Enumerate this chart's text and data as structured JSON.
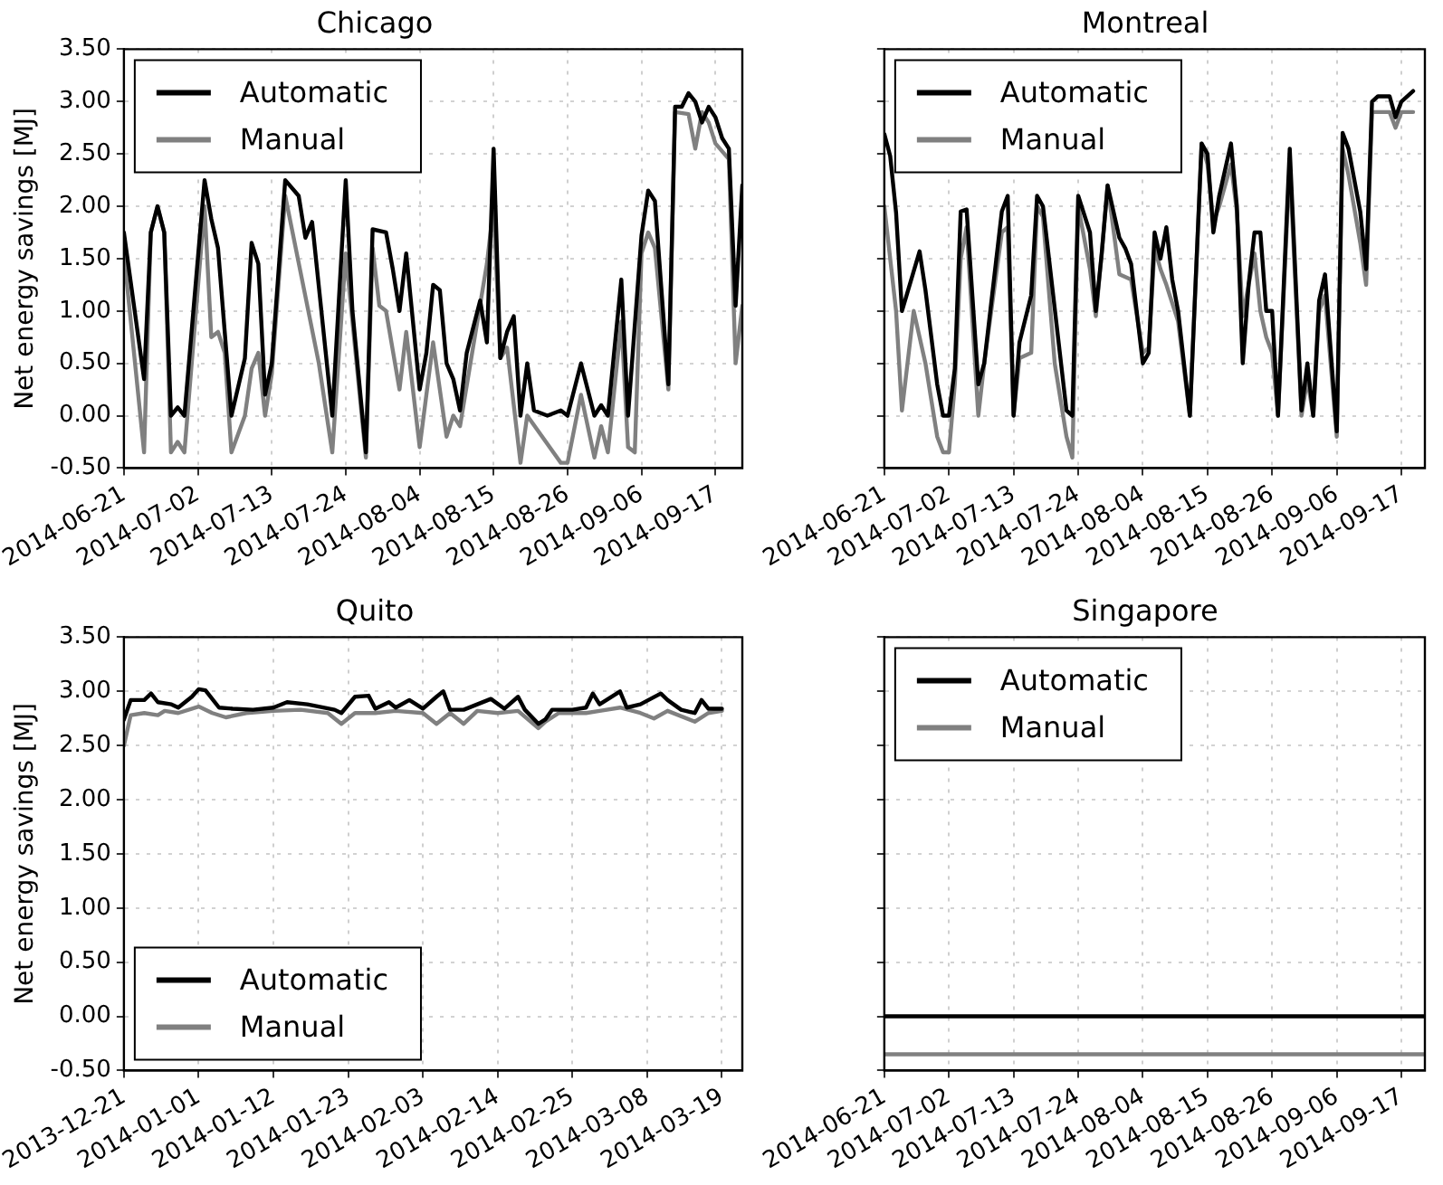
{
  "chart_data": [
    {
      "type": "line",
      "title": "Chicago",
      "ylabel": "Net energy savings [MJ]",
      "legend": "top left",
      "grid": true,
      "line_style": "solid",
      "xlim": [
        "2014-06-21",
        "2014-09-21"
      ],
      "xticks": [
        "2014-06-21",
        "2014-07-02",
        "2014-07-13",
        "2014-07-24",
        "2014-08-04",
        "2014-08-15",
        "2014-08-26",
        "2014-09-06",
        "2014-09-17"
      ],
      "ylim": [
        -0.5,
        3.5
      ],
      "yticks": [
        {
          "value": -0.5,
          "label": "-0.50"
        },
        {
          "value": 0,
          "label": "0.00"
        },
        {
          "value": 0.5,
          "label": "0.50"
        },
        {
          "value": 1,
          "label": "1.00"
        },
        {
          "value": 1.5,
          "label": "1.50"
        },
        {
          "value": 2,
          "label": "2.00"
        },
        {
          "value": 2.5,
          "label": "2.50"
        },
        {
          "value": 3,
          "label": "3.00"
        },
        {
          "value": 3.5,
          "label": "3.50"
        }
      ],
      "series": [
        {
          "name": "Automatic",
          "color": "#000000",
          "x": [
            "2014-06-21",
            "2014-06-24",
            "2014-06-25",
            "2014-06-26",
            "2014-06-27",
            "2014-06-28",
            "2014-06-29",
            "2014-06-30",
            "2014-07-03",
            "2014-07-04",
            "2014-07-05",
            "2014-07-07",
            "2014-07-09",
            "2014-07-10",
            "2014-07-11",
            "2014-07-12",
            "2014-07-13",
            "2014-07-15",
            "2014-07-17",
            "2014-07-18",
            "2014-07-19",
            "2014-07-22",
            "2014-07-24",
            "2014-07-25",
            "2014-07-27",
            "2014-07-28",
            "2014-07-30",
            "2014-07-31",
            "2014-08-01",
            "2014-08-02",
            "2014-08-04",
            "2014-08-05",
            "2014-08-06",
            "2014-08-07",
            "2014-08-08",
            "2014-08-09",
            "2014-08-10",
            "2014-08-11",
            "2014-08-13",
            "2014-08-14",
            "2014-08-15",
            "2014-08-16",
            "2014-08-17",
            "2014-08-18",
            "2014-08-19",
            "2014-08-20",
            "2014-08-21",
            "2014-08-23",
            "2014-08-25",
            "2014-08-26",
            "2014-08-28",
            "2014-08-30",
            "2014-08-31",
            "2014-09-01",
            "2014-09-03",
            "2014-09-04",
            "2014-09-06",
            "2014-09-07",
            "2014-09-08",
            "2014-09-10",
            "2014-09-11",
            "2014-09-12",
            "2014-09-13",
            "2014-09-14",
            "2014-09-15",
            "2014-09-16",
            "2014-09-17",
            "2014-09-18",
            "2014-09-19",
            "2014-09-20",
            "2014-09-21"
          ],
          "values": [
            1.75,
            0.35,
            1.75,
            2.0,
            1.75,
            0.0,
            0.08,
            0.0,
            2.25,
            1.88,
            1.6,
            0.0,
            0.55,
            1.65,
            1.45,
            0.2,
            0.5,
            2.25,
            2.1,
            1.7,
            1.85,
            0.0,
            2.25,
            1.0,
            -0.35,
            1.78,
            1.75,
            1.4,
            1.0,
            1.55,
            0.25,
            0.6,
            1.25,
            1.2,
            0.5,
            0.35,
            0.05,
            0.6,
            1.1,
            0.7,
            2.55,
            0.55,
            0.8,
            0.95,
            0.0,
            0.5,
            0.05,
            0.0,
            0.05,
            0.0,
            0.5,
            0.0,
            0.1,
            0.0,
            1.3,
            0.0,
            1.72,
            2.15,
            2.05,
            0.3,
            2.95,
            2.95,
            3.08,
            3.0,
            2.8,
            2.95,
            2.85,
            2.65,
            2.55,
            1.05,
            2.2
          ]
        },
        {
          "name": "Manual",
          "color": "#808080",
          "x": [
            "2014-06-21",
            "2014-06-24",
            "2014-06-25",
            "2014-06-26",
            "2014-06-27",
            "2014-06-28",
            "2014-06-29",
            "2014-06-30",
            "2014-07-03",
            "2014-07-04",
            "2014-07-05",
            "2014-07-06",
            "2014-07-07",
            "2014-07-09",
            "2014-07-10",
            "2014-07-11",
            "2014-07-12",
            "2014-07-13",
            "2014-07-15",
            "2014-07-20",
            "2014-07-22",
            "2014-07-24",
            "2014-07-27",
            "2014-07-28",
            "2014-07-29",
            "2014-07-30",
            "2014-08-01",
            "2014-08-02",
            "2014-08-04",
            "2014-08-06",
            "2014-08-08",
            "2014-08-09",
            "2014-08-10",
            "2014-08-14",
            "2014-08-15",
            "2014-08-16",
            "2014-08-17",
            "2014-08-19",
            "2014-08-20",
            "2014-08-25",
            "2014-08-26",
            "2014-08-28",
            "2014-08-30",
            "2014-08-31",
            "2014-09-01",
            "2014-09-03",
            "2014-09-04",
            "2014-09-05",
            "2014-09-06",
            "2014-09-07",
            "2014-09-08",
            "2014-09-10",
            "2014-09-11",
            "2014-09-13",
            "2014-09-14",
            "2014-09-15",
            "2014-09-16",
            "2014-09-17",
            "2014-09-19",
            "2014-09-20",
            "2014-09-21"
          ],
          "values": [
            1.55,
            -0.35,
            1.75,
            2.0,
            1.75,
            -0.35,
            -0.25,
            -0.35,
            2.0,
            0.75,
            0.8,
            0.6,
            -0.35,
            0.0,
            0.45,
            0.6,
            0.0,
            0.4,
            2.1,
            0.5,
            -0.35,
            1.55,
            -0.4,
            1.6,
            1.05,
            1.0,
            0.25,
            0.8,
            -0.3,
            0.7,
            -0.2,
            0.0,
            -0.1,
            1.45,
            2.0,
            0.55,
            0.65,
            -0.45,
            0.0,
            -0.45,
            -0.45,
            0.2,
            -0.4,
            -0.1,
            -0.35,
            0.9,
            -0.3,
            -0.35,
            1.55,
            1.75,
            1.6,
            0.25,
            2.9,
            2.88,
            2.55,
            2.9,
            2.8,
            2.6,
            2.45,
            0.5,
            1.05
          ]
        }
      ]
    },
    {
      "type": "line",
      "title": "Montreal",
      "legend": "top left",
      "grid": true,
      "line_style": "solid",
      "tick_labels": "x",
      "xlim": [
        "2014-06-21",
        "2014-09-21"
      ],
      "xticks": [
        "2014-06-21",
        "2014-07-02",
        "2014-07-13",
        "2014-07-24",
        "2014-08-04",
        "2014-08-15",
        "2014-08-26",
        "2014-09-06",
        "2014-09-17"
      ],
      "ylim": [
        -0.5,
        3.5
      ],
      "yticks": [
        {
          "value": -0.5,
          "label": null
        },
        {
          "value": 0,
          "label": null
        },
        {
          "value": 0.5,
          "label": null
        },
        {
          "value": 1,
          "label": null
        },
        {
          "value": 1.5,
          "label": null
        },
        {
          "value": 2,
          "label": null
        },
        {
          "value": 2.5,
          "label": null
        },
        {
          "value": 3,
          "label": null
        },
        {
          "value": 3.5,
          "label": null
        }
      ],
      "series": [
        {
          "name": "Automatic",
          "color": "#000000",
          "x": [
            "2014-06-21",
            "2014-06-22",
            "2014-06-23",
            "2014-06-24",
            "2014-06-27",
            "2014-06-28",
            "2014-06-30",
            "2014-07-01",
            "2014-07-02",
            "2014-07-03",
            "2014-07-04",
            "2014-07-05",
            "2014-07-07",
            "2014-07-08",
            "2014-07-11",
            "2014-07-12",
            "2014-07-13",
            "2014-07-14",
            "2014-07-16",
            "2014-07-17",
            "2014-07-18",
            "2014-07-22",
            "2014-07-23",
            "2014-07-24",
            "2014-07-26",
            "2014-07-27",
            "2014-07-28",
            "2014-07-29",
            "2014-07-31",
            "2014-08-01",
            "2014-08-02",
            "2014-08-04",
            "2014-08-05",
            "2014-08-06",
            "2014-08-07",
            "2014-08-08",
            "2014-08-09",
            "2014-08-10",
            "2014-08-12",
            "2014-08-14",
            "2014-08-15",
            "2014-08-16",
            "2014-08-17",
            "2014-08-19",
            "2014-08-20",
            "2014-08-21",
            "2014-08-22",
            "2014-08-23",
            "2014-08-24",
            "2014-08-25",
            "2014-08-26",
            "2014-08-27",
            "2014-08-29",
            "2014-08-31",
            "2014-09-01",
            "2014-09-02",
            "2014-09-03",
            "2014-09-04",
            "2014-09-06",
            "2014-09-07",
            "2014-09-08",
            "2014-09-10",
            "2014-09-11",
            "2014-09-12",
            "2014-09-13",
            "2014-09-15",
            "2014-09-16",
            "2014-09-17",
            "2014-09-19"
          ],
          "values": [
            2.69,
            2.48,
            1.94,
            1.0,
            1.57,
            1.2,
            0.3,
            0.0,
            0.0,
            0.45,
            1.95,
            1.97,
            0.3,
            0.5,
            1.95,
            2.1,
            0.0,
            0.7,
            1.15,
            2.1,
            2.0,
            0.05,
            0.0,
            2.1,
            1.75,
            1.0,
            1.55,
            2.2,
            1.7,
            1.6,
            1.45,
            0.5,
            0.6,
            1.75,
            1.5,
            1.8,
            1.3,
            1.0,
            0.0,
            2.6,
            2.5,
            1.75,
            2.1,
            2.6,
            2.0,
            0.5,
            1.25,
            1.75,
            1.75,
            1.0,
            1.0,
            0.0,
            2.55,
            0.05,
            0.5,
            0.0,
            1.1,
            1.35,
            -0.15,
            2.7,
            2.55,
            1.95,
            1.4,
            3.0,
            3.05,
            3.05,
            2.85,
            3.0,
            3.1
          ]
        },
        {
          "name": "Manual",
          "color": "#808080",
          "x": [
            "2014-06-21",
            "2014-06-23",
            "2014-06-24",
            "2014-06-26",
            "2014-06-28",
            "2014-06-30",
            "2014-07-01",
            "2014-07-02",
            "2014-07-03",
            "2014-07-04",
            "2014-07-05",
            "2014-07-07",
            "2014-07-08",
            "2014-07-11",
            "2014-07-12",
            "2014-07-13",
            "2014-07-14",
            "2014-07-16",
            "2014-07-17",
            "2014-07-18",
            "2014-07-20",
            "2014-07-22",
            "2014-07-23",
            "2014-07-24",
            "2014-07-26",
            "2014-07-27",
            "2014-07-28",
            "2014-07-29",
            "2014-07-31",
            "2014-08-02",
            "2014-08-04",
            "2014-08-05",
            "2014-08-06",
            "2014-08-07",
            "2014-08-08",
            "2014-08-10",
            "2014-08-12",
            "2014-08-14",
            "2014-08-15",
            "2014-08-16",
            "2014-08-17",
            "2014-08-19",
            "2014-08-20",
            "2014-08-21",
            "2014-08-23",
            "2014-08-24",
            "2014-08-25",
            "2014-08-26",
            "2014-08-27",
            "2014-08-29",
            "2014-08-31",
            "2014-09-01",
            "2014-09-02",
            "2014-09-03",
            "2014-09-04",
            "2014-09-06",
            "2014-09-07",
            "2014-09-08",
            "2014-09-10",
            "2014-09-11",
            "2014-09-12",
            "2014-09-15",
            "2014-09-16",
            "2014-09-17",
            "2014-09-19"
          ],
          "values": [
            2.0,
            1.0,
            0.05,
            1.0,
            0.5,
            -0.2,
            -0.35,
            -0.35,
            0.3,
            1.5,
            1.8,
            0.0,
            0.5,
            1.75,
            1.8,
            0.0,
            0.55,
            0.6,
            2.0,
            1.9,
            0.5,
            -0.2,
            -0.4,
            2.0,
            1.4,
            0.95,
            1.55,
            2.2,
            1.35,
            1.3,
            0.6,
            0.65,
            1.6,
            1.4,
            1.25,
            0.9,
            0.0,
            2.6,
            2.4,
            1.85,
            2.0,
            2.4,
            1.95,
            0.95,
            1.55,
            1.0,
            0.75,
            0.6,
            0.0,
            2.4,
            0.0,
            0.35,
            0.0,
            1.0,
            1.15,
            -0.2,
            2.55,
            2.3,
            1.65,
            1.25,
            2.9,
            2.9,
            2.75,
            2.9,
            2.9
          ]
        }
      ]
    },
    {
      "type": "line",
      "title": "Quito",
      "ylabel": "Net energy savings [MJ]",
      "legend": "bottom left",
      "grid": true,
      "line_style": "solid",
      "xlim": [
        "2013-12-21",
        "2014-03-22"
      ],
      "xticks": [
        "2013-12-21",
        "2014-01-01",
        "2014-01-12",
        "2014-01-23",
        "2014-02-03",
        "2014-02-14",
        "2014-02-25",
        "2014-03-08",
        "2014-03-19"
      ],
      "ylim": [
        -0.5,
        3.5
      ],
      "yticks": [
        {
          "value": -0.5,
          "label": "-0.50"
        },
        {
          "value": 0,
          "label": "0.00"
        },
        {
          "value": 0.5,
          "label": "0.50"
        },
        {
          "value": 1,
          "label": "1.00"
        },
        {
          "value": 1.5,
          "label": "1.50"
        },
        {
          "value": 2,
          "label": "2.00"
        },
        {
          "value": 2.5,
          "label": "2.50"
        },
        {
          "value": 3,
          "label": "3.00"
        },
        {
          "value": 3.5,
          "label": "3.50"
        }
      ],
      "series": [
        {
          "name": "Automatic",
          "color": "#000000",
          "x": [
            "2013-12-21",
            "2013-12-22",
            "2013-12-24",
            "2013-12-25",
            "2013-12-26",
            "2013-12-28",
            "2013-12-29",
            "2013-12-31",
            "2014-01-01",
            "2014-01-02",
            "2014-01-04",
            "2014-01-06",
            "2014-01-09",
            "2014-01-12",
            "2014-01-14",
            "2014-01-17",
            "2014-01-21",
            "2014-01-22",
            "2014-01-24",
            "2014-01-26",
            "2014-01-27",
            "2014-01-29",
            "2014-01-30",
            "2014-02-01",
            "2014-02-03",
            "2014-02-05",
            "2014-02-06",
            "2014-02-07",
            "2014-02-09",
            "2014-02-11",
            "2014-02-13",
            "2014-02-15",
            "2014-02-17",
            "2014-02-18",
            "2014-02-20",
            "2014-02-21",
            "2014-02-22",
            "2014-02-25",
            "2014-02-27",
            "2014-02-28",
            "2014-03-01",
            "2014-03-04",
            "2014-03-05",
            "2014-03-07",
            "2014-03-10",
            "2014-03-11",
            "2014-03-13",
            "2014-03-15",
            "2014-03-16",
            "2014-03-17",
            "2014-03-19"
          ],
          "values": [
            2.74,
            2.92,
            2.92,
            2.98,
            2.9,
            2.88,
            2.85,
            2.95,
            3.02,
            3.01,
            2.85,
            2.84,
            2.83,
            2.85,
            2.9,
            2.88,
            2.83,
            2.8,
            2.95,
            2.96,
            2.84,
            2.9,
            2.85,
            2.92,
            2.84,
            2.95,
            3.0,
            2.83,
            2.83,
            2.88,
            2.93,
            2.84,
            2.95,
            2.83,
            2.7,
            2.74,
            2.83,
            2.83,
            2.85,
            2.98,
            2.88,
            3.0,
            2.85,
            2.88,
            2.98,
            2.92,
            2.83,
            2.8,
            2.92,
            2.84,
            2.84
          ]
        },
        {
          "name": "Manual",
          "color": "#808080",
          "x": [
            "2013-12-21",
            "2013-12-22",
            "2013-12-24",
            "2013-12-26",
            "2013-12-27",
            "2013-12-29",
            "2014-01-01",
            "2014-01-03",
            "2014-01-05",
            "2014-01-08",
            "2014-01-12",
            "2014-01-16",
            "2014-01-20",
            "2014-01-22",
            "2014-01-24",
            "2014-01-27",
            "2014-01-30",
            "2014-02-03",
            "2014-02-05",
            "2014-02-07",
            "2014-02-09",
            "2014-02-11",
            "2014-02-14",
            "2014-02-17",
            "2014-02-20",
            "2014-02-21",
            "2014-02-23",
            "2014-02-27",
            "2014-03-01",
            "2014-03-04",
            "2014-03-07",
            "2014-03-09",
            "2014-03-11",
            "2014-03-15",
            "2014-03-17",
            "2014-03-19"
          ],
          "values": [
            2.5,
            2.78,
            2.8,
            2.78,
            2.82,
            2.8,
            2.86,
            2.8,
            2.76,
            2.8,
            2.82,
            2.83,
            2.8,
            2.7,
            2.8,
            2.8,
            2.82,
            2.8,
            2.7,
            2.8,
            2.7,
            2.82,
            2.8,
            2.82,
            2.66,
            2.72,
            2.8,
            2.8,
            2.82,
            2.85,
            2.8,
            2.75,
            2.82,
            2.72,
            2.8,
            2.82
          ]
        }
      ]
    },
    {
      "type": "line",
      "title": "Singapore",
      "legend": "top left",
      "grid": true,
      "line_style": "solid",
      "tick_labels": "x",
      "xlim": [
        "2014-06-21",
        "2014-09-21"
      ],
      "xticks": [
        "2014-06-21",
        "2014-07-02",
        "2014-07-13",
        "2014-07-24",
        "2014-08-04",
        "2014-08-15",
        "2014-08-26",
        "2014-09-06",
        "2014-09-17"
      ],
      "ylim": [
        -0.5,
        3.5
      ],
      "yticks": [
        {
          "value": -0.5,
          "label": null
        },
        {
          "value": 0,
          "label": null
        },
        {
          "value": 0.5,
          "label": null
        },
        {
          "value": 1,
          "label": null
        },
        {
          "value": 1.5,
          "label": null
        },
        {
          "value": 2,
          "label": null
        },
        {
          "value": 2.5,
          "label": null
        },
        {
          "value": 3,
          "label": null
        },
        {
          "value": 3.5,
          "label": null
        }
      ],
      "series": [
        {
          "name": "Automatic",
          "color": "#000000",
          "x": [
            "2014-06-21",
            "2014-09-21"
          ],
          "values": [
            0.0,
            0.0
          ]
        },
        {
          "name": "Manual",
          "color": "#808080",
          "x": [
            "2014-06-21",
            "2014-09-21"
          ],
          "values": [
            -0.35,
            -0.35
          ]
        }
      ]
    }
  ]
}
